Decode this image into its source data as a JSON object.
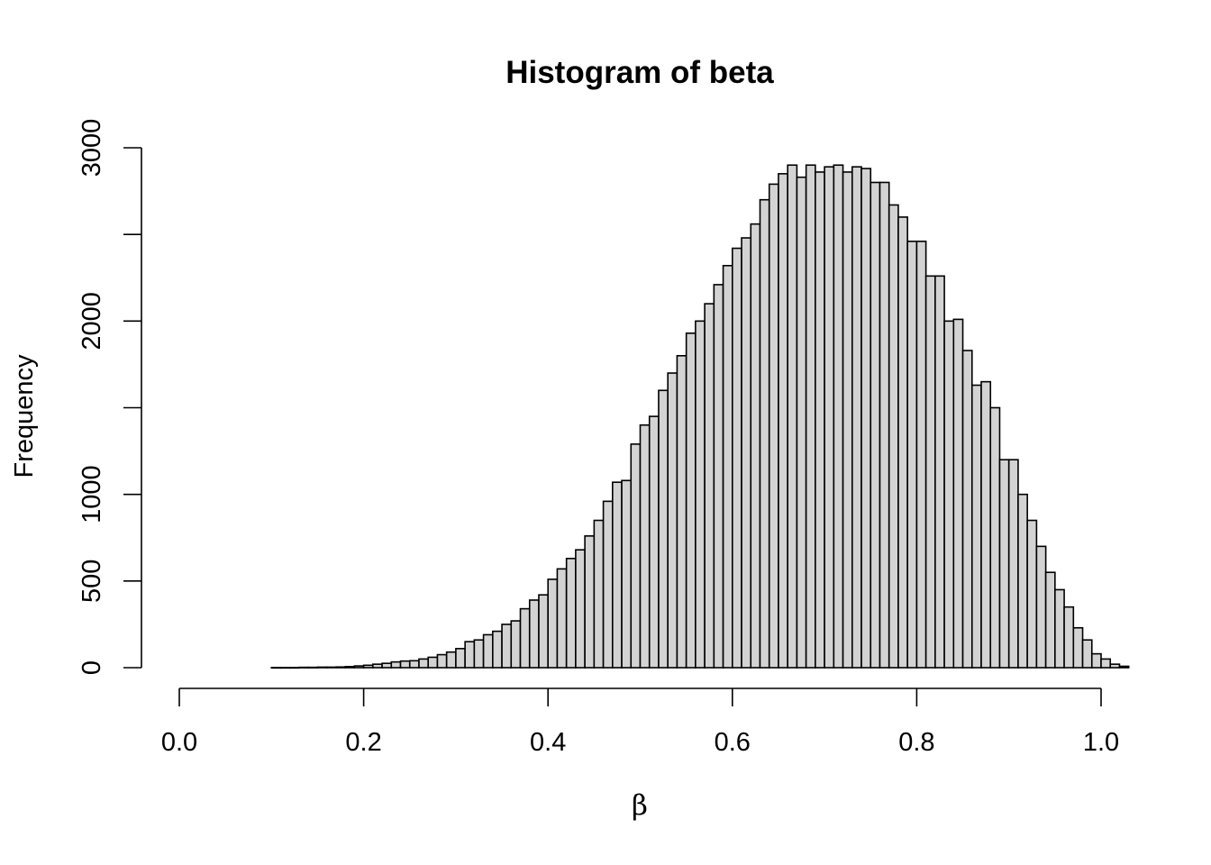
{
  "chart_data": {
    "type": "bar",
    "title": "Histogram of beta",
    "xlabel": "β",
    "ylabel": "Frequency",
    "xlim": [
      0,
      1
    ],
    "ylim": [
      0,
      3000
    ],
    "x_ticks": [
      0.0,
      0.2,
      0.4,
      0.6,
      0.8,
      1.0
    ],
    "x_tick_labels": [
      "0.0",
      "0.2",
      "0.4",
      "0.6",
      "0.8",
      "1.0"
    ],
    "y_ticks": [
      0,
      500,
      1000,
      1500,
      2000,
      2500,
      3000
    ],
    "y_tick_labels": [
      "0",
      "500",
      "1000",
      "",
      "2000",
      "",
      "3000"
    ],
    "bin_width": 0.01,
    "bin_start": 0.1,
    "bar_color": "#d3d3d3",
    "edge_color": "#000000",
    "grid": false,
    "legend": "none",
    "values": [
      1,
      1,
      1,
      2,
      2,
      3,
      3,
      4,
      6,
      10,
      14,
      20,
      25,
      33,
      38,
      40,
      50,
      60,
      75,
      90,
      110,
      150,
      160,
      190,
      210,
      250,
      270,
      340,
      390,
      420,
      510,
      570,
      630,
      680,
      760,
      850,
      960,
      1070,
      1080,
      1290,
      1400,
      1450,
      1600,
      1700,
      1800,
      1930,
      2000,
      2100,
      2210,
      2320,
      2420,
      2480,
      2560,
      2700,
      2790,
      2850,
      2900,
      2830,
      2900,
      2860,
      2890,
      2900,
      2860,
      2890,
      2880,
      2800,
      2800,
      2670,
      2600,
      2460,
      2460,
      2260,
      2260,
      2000,
      2010,
      1830,
      1630,
      1650,
      1500,
      1200,
      1200,
      1000,
      850,
      700,
      550,
      450,
      350,
      230,
      160,
      80,
      50,
      20,
      8
    ]
  }
}
